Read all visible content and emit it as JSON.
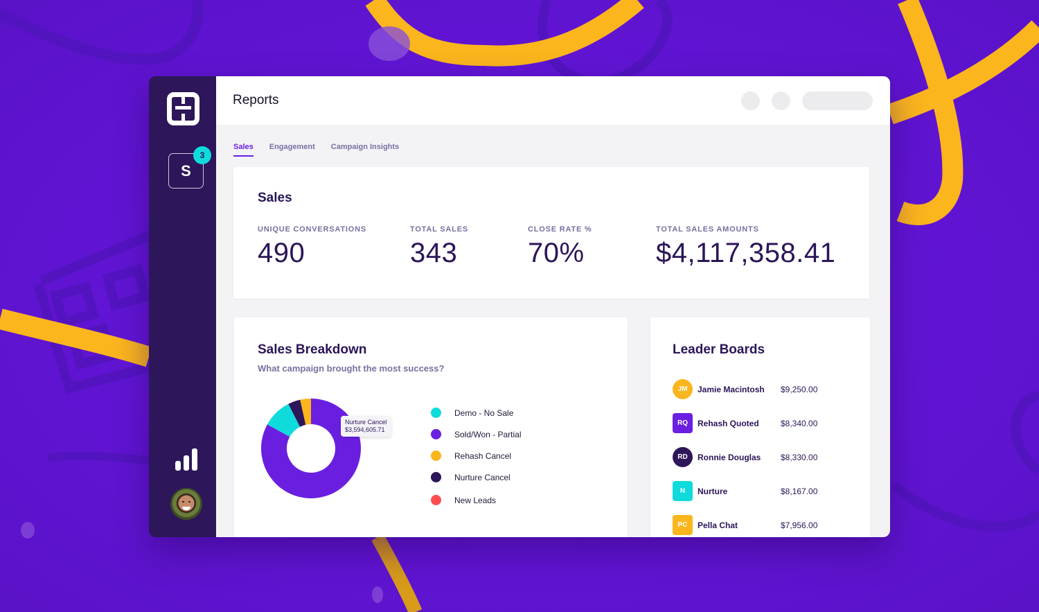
{
  "colors": {
    "background": "#6515dd",
    "accent_yellow": "#fbb51d",
    "sidebar": "#2d1659",
    "primary_purple": "#6a1fe0",
    "teal": "#0fdbdc",
    "dark_navy": "#2d1659",
    "coral": "#ff4d4f"
  },
  "sidebar": {
    "logo": "H-logo-icon",
    "workspace": {
      "letter": "S",
      "badge_count": "3"
    },
    "nav_icon": "bar-chart-icon",
    "avatar": "user-avatar"
  },
  "header": {
    "title": "Reports"
  },
  "tabs": [
    {
      "label": "Sales",
      "active": true
    },
    {
      "label": "Engagement",
      "active": false
    },
    {
      "label": "Campaign Insights",
      "active": false
    }
  ],
  "sales_summary": {
    "title": "Sales",
    "stats": [
      {
        "label": "UNIQUE CONVERSATIONS",
        "value": "490"
      },
      {
        "label": "TOTAL SALES",
        "value": "343"
      },
      {
        "label": "CLOSE RATE %",
        "value": "70%"
      },
      {
        "label": "TOTAL SALES AMOUNTS",
        "value": "$4,117,358.41"
      }
    ]
  },
  "breakdown": {
    "title": "Sales Breakdown",
    "subtitle": "What campaign brought the most success?",
    "tooltip": {
      "label": "Nurture Cancel",
      "value": "$3,594,605.71"
    },
    "legend": [
      {
        "label": "Demo - No Sale",
        "color": "#0fdbdc"
      },
      {
        "label": "Sold/Won - Partial",
        "color": "#6a1fe0"
      },
      {
        "label": "Rehash Cancel",
        "color": "#fbb51d"
      },
      {
        "label": "Nurture Cancel",
        "color": "#2d1659"
      },
      {
        "label": "New Leads",
        "color": "#ff4d4f"
      }
    ]
  },
  "chart_data": {
    "type": "pie",
    "title": "Sales Breakdown",
    "categories": [
      "Sold/Won - Partial",
      "Demo - No Sale",
      "Nurture Cancel",
      "Rehash Cancel",
      "New Leads"
    ],
    "values": [
      83,
      9.5,
      4,
      3.5,
      0
    ],
    "colors": [
      "#6a1fe0",
      "#0fdbdc",
      "#2d1659",
      "#fbb51d",
      "#ff4d4f"
    ],
    "donut": true,
    "legend_position": "right"
  },
  "leaderboard": {
    "title": "Leader Boards",
    "rows": [
      {
        "initials": "JM",
        "name": "Jamie Macintosh",
        "amount": "$9,250.00",
        "color": "#fbb51d",
        "shape": "circle"
      },
      {
        "initials": "RQ",
        "name": "Rehash Quoted",
        "amount": "$8,340.00",
        "color": "#6a1fe0",
        "shape": "square"
      },
      {
        "initials": "RD",
        "name": "Ronnie Douglas",
        "amount": "$8,330.00",
        "color": "#2d1659",
        "shape": "circle"
      },
      {
        "initials": "N",
        "name": "Nurture",
        "amount": "$8,167.00",
        "color": "#0fdbdc",
        "shape": "square"
      },
      {
        "initials": "PC",
        "name": "Pella Chat",
        "amount": "$7,956.00",
        "color": "#fbb51d",
        "shape": "square"
      }
    ]
  }
}
